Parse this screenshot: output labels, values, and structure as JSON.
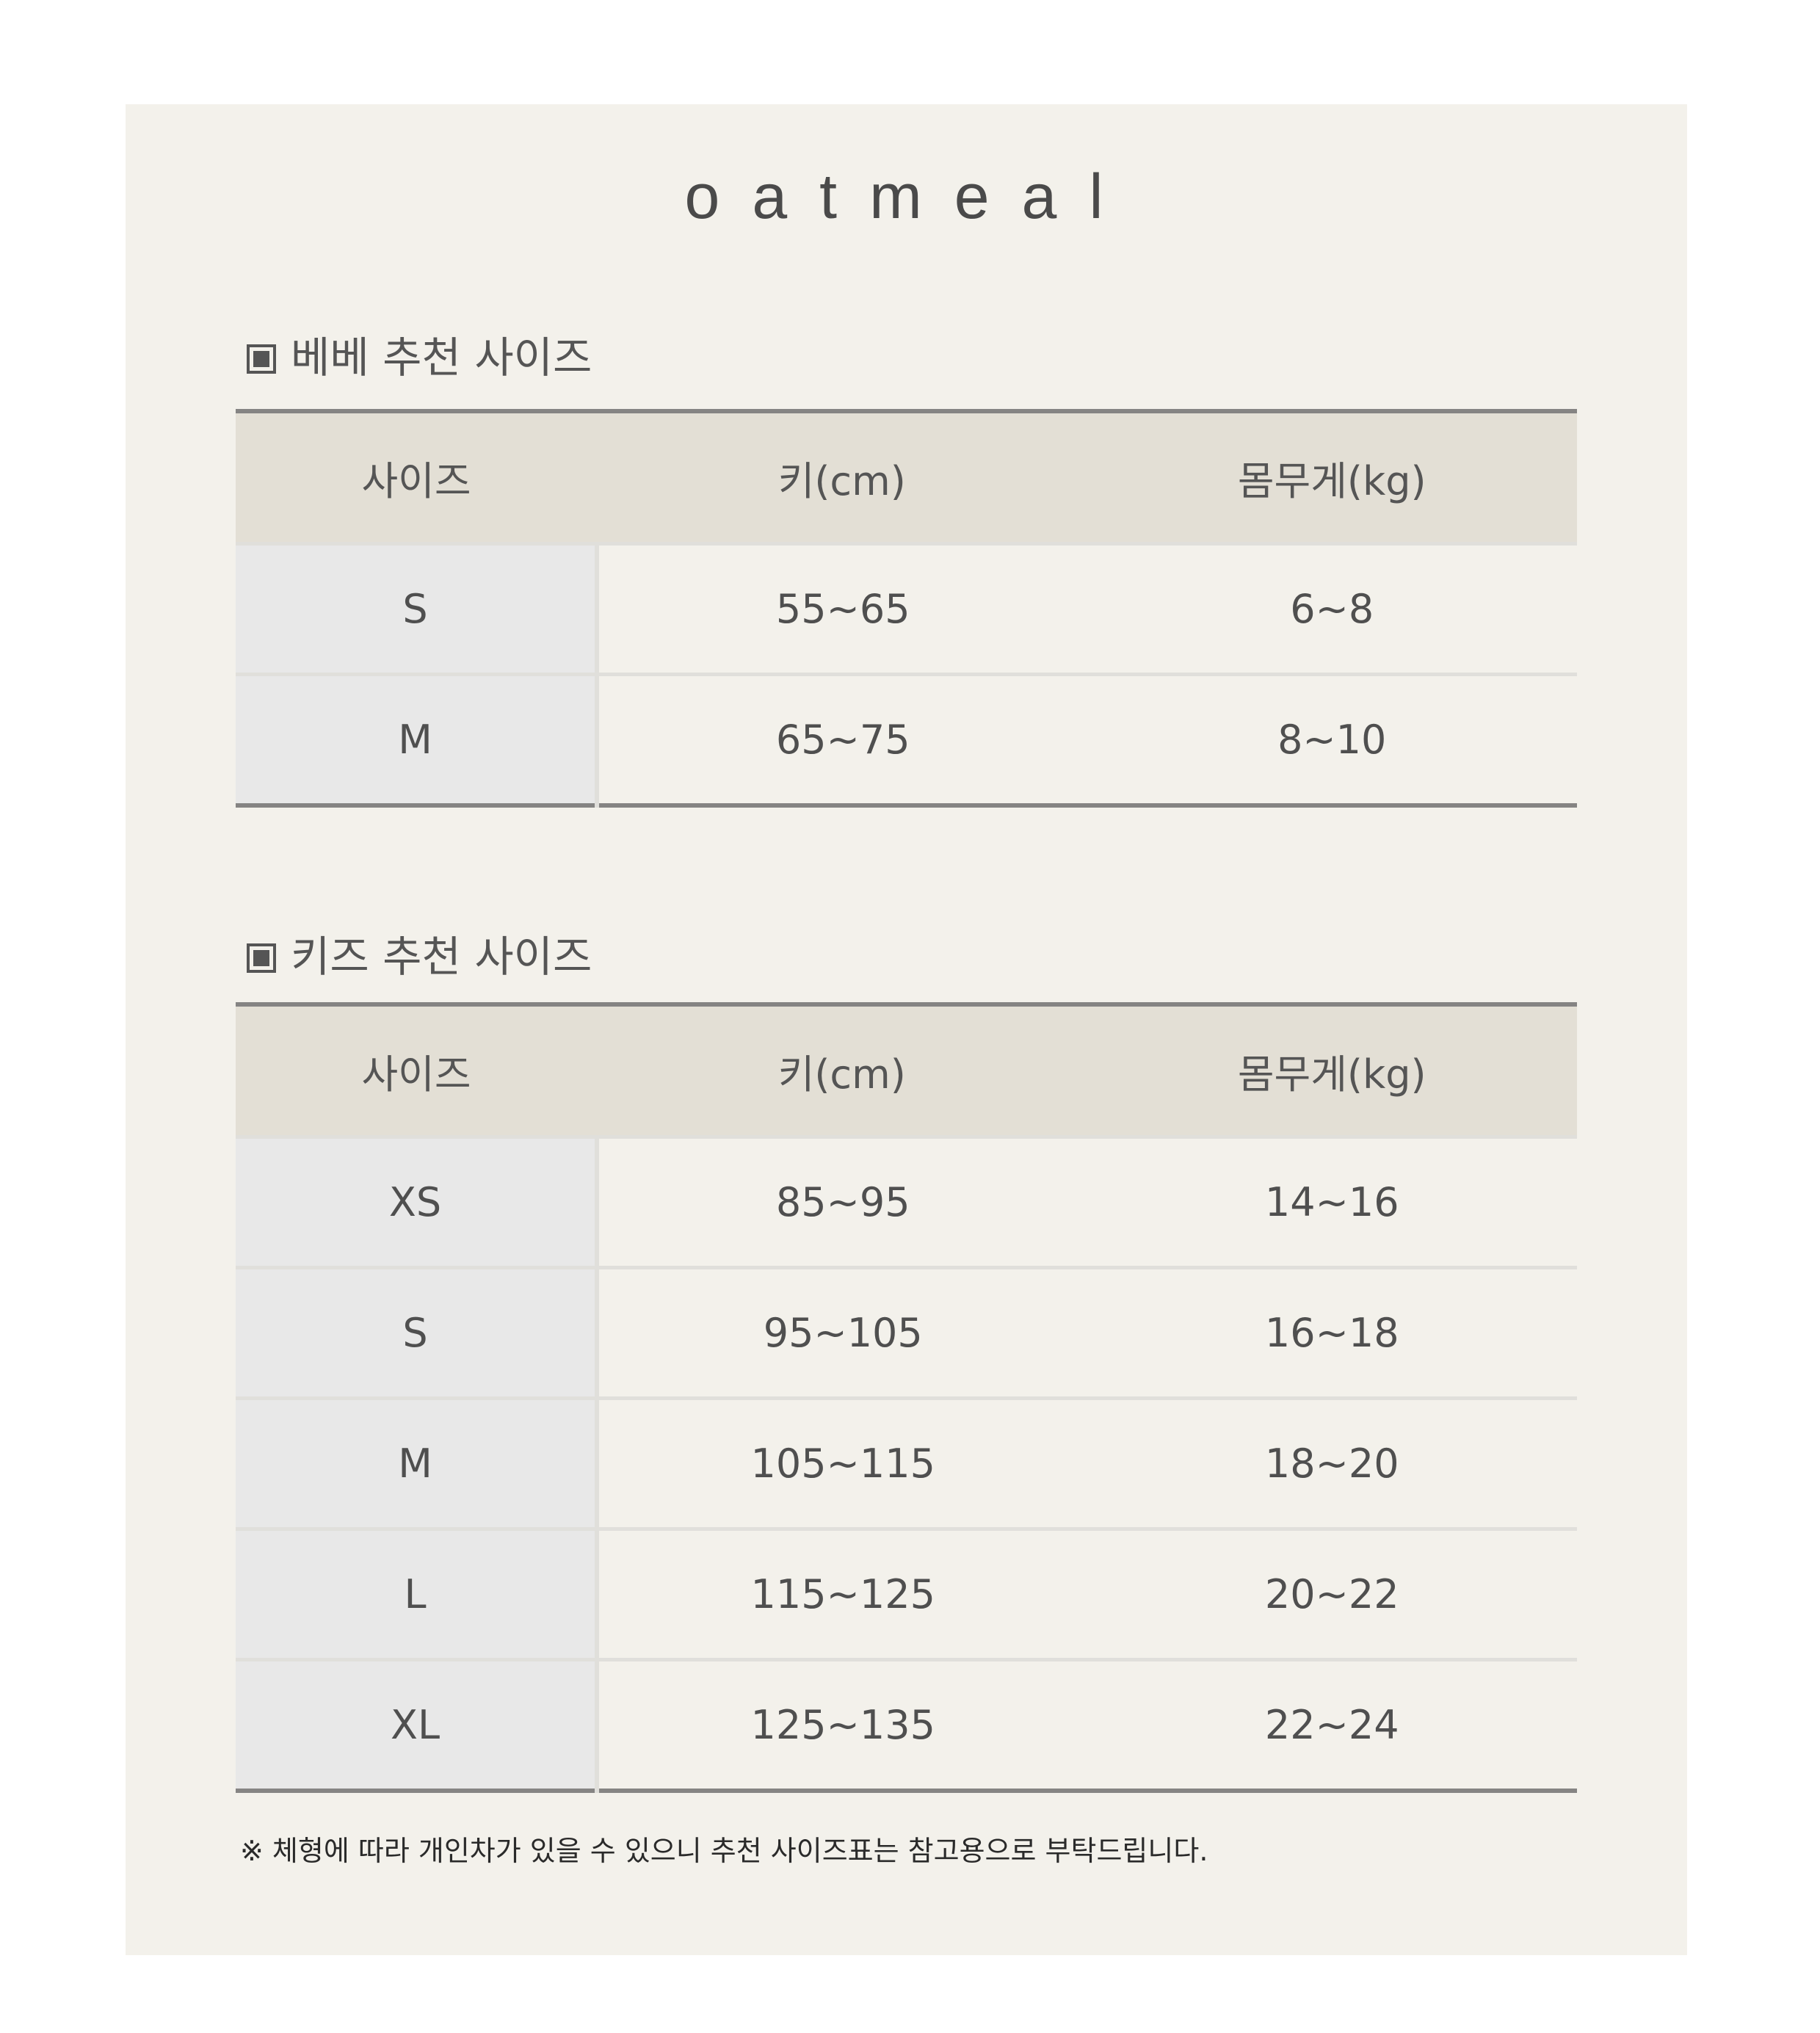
{
  "brand": "oatmeal",
  "sections": [
    {
      "title": "베베 추천 사이즈",
      "headers": [
        "사이즈",
        "키(cm)",
        "몸무게(kg)"
      ],
      "rows": [
        [
          "S",
          "55~65",
          "6~8"
        ],
        [
          "M",
          "65~75",
          "8~10"
        ]
      ]
    },
    {
      "title": "키즈 추천 사이즈",
      "headers": [
        "사이즈",
        "키(cm)",
        "몸무게(kg)"
      ],
      "rows": [
        [
          "XS",
          "85~95",
          "14~16"
        ],
        [
          "S",
          "95~105",
          "16~18"
        ],
        [
          "M",
          "105~115",
          "18~20"
        ],
        [
          "L",
          "115~125",
          "20~22"
        ],
        [
          "XL",
          "125~135",
          "22~24"
        ]
      ]
    }
  ],
  "footnote": "※ 체형에 따라 개인차가 있을 수 있으니 추천 사이즈표는 참고용으로 부탁드립니다.",
  "colors": {
    "panel": "#f3f1eb",
    "header": "#e3dfd5",
    "size_column": "#e8e8e8",
    "rule": "#858483"
  }
}
